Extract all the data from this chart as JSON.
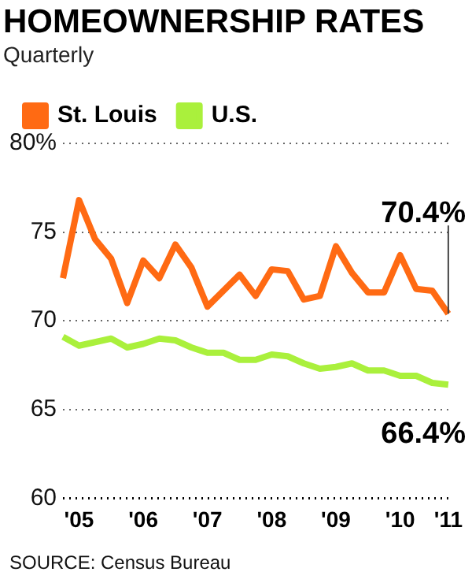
{
  "chart_data": {
    "type": "line",
    "title": "HOMEOWNERSHIP RATES",
    "subtitle": "Quarterly",
    "categories": [
      null,
      "'05",
      null,
      null,
      null,
      "'06",
      null,
      null,
      null,
      "'07",
      null,
      null,
      null,
      "'08",
      null,
      null,
      null,
      "'09",
      null,
      null,
      null,
      "'10",
      null,
      null,
      "'11"
    ],
    "series": [
      {
        "name": "St. Louis",
        "color": "#ff6a13",
        "values": [
          72.4,
          76.8,
          74.6,
          73.5,
          71.0,
          73.4,
          72.4,
          74.3,
          73.0,
          70.8,
          71.7,
          72.6,
          71.4,
          72.9,
          72.8,
          71.2,
          71.4,
          74.2,
          72.7,
          71.6,
          71.6,
          73.7,
          71.8,
          71.7,
          70.4
        ]
      },
      {
        "name": "U.S.",
        "color": "#aaf03c",
        "values": [
          69.1,
          68.6,
          68.8,
          69.0,
          68.5,
          68.7,
          69.0,
          68.9,
          68.5,
          68.2,
          68.2,
          67.8,
          67.8,
          68.1,
          68.0,
          67.6,
          67.3,
          67.4,
          67.6,
          67.2,
          67.2,
          66.9,
          66.9,
          66.5,
          66.4
        ]
      }
    ],
    "ylim": [
      60,
      80
    ],
    "yticks": [
      60,
      65,
      70,
      75,
      {
        "value": 80,
        "label": "80%"
      }
    ],
    "grid": "y",
    "legend": "top left",
    "marker": "none",
    "line_style": "solid",
    "annotations": [
      {
        "text": "70.4%",
        "x": "'11",
        "y": 70.4
      },
      {
        "text": "66.4%",
        "x": "'11",
        "y": 66.4
      },
      "SOURCE: Census Bureau"
    ]
  }
}
